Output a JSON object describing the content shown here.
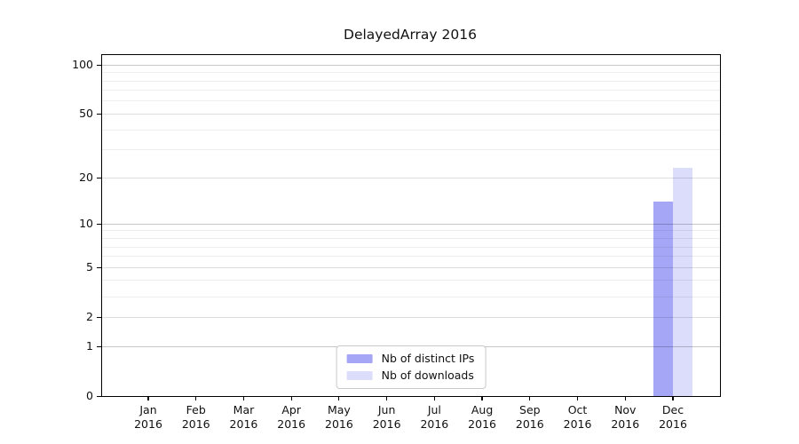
{
  "title": "DelayedArray 2016",
  "chart_data": {
    "type": "bar",
    "title": "DelayedArray 2016",
    "categories": [
      {
        "month": "Jan",
        "year": "2016"
      },
      {
        "month": "Feb",
        "year": "2016"
      },
      {
        "month": "Mar",
        "year": "2016"
      },
      {
        "month": "Apr",
        "year": "2016"
      },
      {
        "month": "May",
        "year": "2016"
      },
      {
        "month": "Jun",
        "year": "2016"
      },
      {
        "month": "Jul",
        "year": "2016"
      },
      {
        "month": "Aug",
        "year": "2016"
      },
      {
        "month": "Sep",
        "year": "2016"
      },
      {
        "month": "Oct",
        "year": "2016"
      },
      {
        "month": "Nov",
        "year": "2016"
      },
      {
        "month": "Dec",
        "year": "2016"
      }
    ],
    "series": [
      {
        "name": "Nb of distinct IPs",
        "color": "#a6a6f7",
        "values": [
          0,
          0,
          0,
          0,
          0,
          0,
          0,
          0,
          0,
          0,
          0,
          14
        ]
      },
      {
        "name": "Nb of downloads",
        "color": "#dcdcfb",
        "values": [
          0,
          0,
          0,
          0,
          0,
          0,
          0,
          0,
          0,
          0,
          0,
          23
        ]
      }
    ],
    "xlabel": "",
    "ylabel": "",
    "yscale": "log1p",
    "ylim": [
      0,
      115
    ],
    "y_major_ticks": [
      0,
      1,
      2,
      5,
      10,
      20,
      50,
      100
    ],
    "y_minor_gridlines": [
      3,
      4,
      6,
      7,
      8,
      9,
      30,
      40,
      60,
      70,
      80,
      90
    ],
    "grid": "horizontal",
    "legend_position": "lower center"
  },
  "colors": {
    "bar_distinct_ips": "#a6a6f7",
    "bar_downloads": "#dcdcfb",
    "grid_major_power10": "#c7c7c7",
    "grid_major": "#dedede",
    "grid_minor": "#ededed",
    "axis_frame": "#000000",
    "legend_border": "#c9c9c9",
    "background": "#ffffff"
  }
}
